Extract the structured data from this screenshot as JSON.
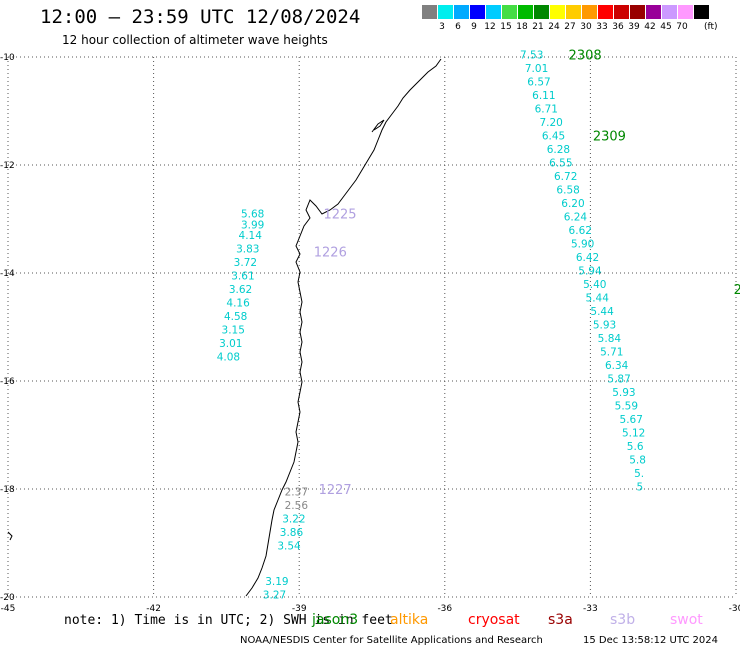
{
  "header": {
    "title": "12:00 – 23:59 UTC 12/08/2024",
    "subtitle": "12 hour collection of altimeter wave heights"
  },
  "scale": {
    "colors": [
      "#808080",
      "#00eeee",
      "#00aaff",
      "#0000ff",
      "#00ccff",
      "#44dd44",
      "#00bb00",
      "#008800",
      "#ffff00",
      "#ffcc00",
      "#ff9900",
      "#ff0000",
      "#cc0000",
      "#990000",
      "#990099",
      "#cc99ff",
      "#ff99ff",
      "#000000"
    ],
    "ticks": [
      "3",
      "6",
      "9",
      "12",
      "15",
      "18",
      "21",
      "24",
      "27",
      "30",
      "33",
      "36",
      "39",
      "42",
      "45",
      "70"
    ],
    "unit": "(ft)"
  },
  "map": {
    "lon_range": [
      -45,
      -30
    ],
    "lat_range": [
      -20,
      -10
    ],
    "lon_ticks": [
      "-45",
      "-42",
      "-39",
      "-36",
      "-33",
      "-30"
    ],
    "lat_ticks": [
      "-10",
      "-12",
      "-14",
      "-16",
      "-18",
      "-20"
    ],
    "grid": "dotted"
  },
  "tracks": [
    {
      "color": "#00cccc",
      "points": [
        {
          "lon": -40.2,
          "lat": -12.9,
          "v": "5.68"
        },
        {
          "lon": -40.2,
          "lat": -13.1,
          "v": "3.99"
        },
        {
          "lon": -40.25,
          "lat": -13.3,
          "v": "4.14"
        },
        {
          "lon": -40.3,
          "lat": -13.55,
          "v": "3.83"
        },
        {
          "lon": -40.35,
          "lat": -13.8,
          "v": "3.72"
        },
        {
          "lon": -40.4,
          "lat": -14.05,
          "v": "3.61"
        },
        {
          "lon": -40.45,
          "lat": -14.3,
          "v": "3.62"
        },
        {
          "lon": -40.5,
          "lat": -14.55,
          "v": "4.16"
        },
        {
          "lon": -40.55,
          "lat": -14.8,
          "v": "4.58"
        },
        {
          "lon": -40.6,
          "lat": -15.05,
          "v": "3.15"
        },
        {
          "lon": -40.65,
          "lat": -15.3,
          "v": "3.01"
        },
        {
          "lon": -40.7,
          "lat": -15.55,
          "v": "4.08"
        }
      ],
      "labels": [
        {
          "lon": -38.5,
          "lat": -12.9,
          "text": "1225",
          "color": "#b0a0e0"
        },
        {
          "lon": -38.7,
          "lat": -13.6,
          "text": "1226",
          "color": "#b0a0e0"
        }
      ]
    },
    {
      "color": "#00cccc",
      "points": [
        {
          "lon": -39.3,
          "lat": -18.05,
          "v": "2.37",
          "color": "#888888"
        },
        {
          "lon": -39.3,
          "lat": -18.3,
          "v": "2.56",
          "color": "#888888"
        },
        {
          "lon": -39.35,
          "lat": -18.55,
          "v": "3.22"
        },
        {
          "lon": -39.4,
          "lat": -18.8,
          "v": "3.86"
        },
        {
          "lon": -39.45,
          "lat": -19.05,
          "v": "3.54"
        },
        {
          "lon": -39.7,
          "lat": -19.7,
          "v": "3.19"
        },
        {
          "lon": -39.75,
          "lat": -19.95,
          "v": "3.27"
        }
      ],
      "labels": [
        {
          "lon": -38.6,
          "lat": -18.0,
          "text": "1227",
          "color": "#b0a0e0"
        }
      ]
    },
    {
      "color": "#00cccc",
      "points": [
        {
          "lon": -34.45,
          "lat": -9.95,
          "v": "7.53"
        },
        {
          "lon": -34.35,
          "lat": -10.2,
          "v": "7.01"
        },
        {
          "lon": -34.3,
          "lat": -10.45,
          "v": "6.57"
        },
        {
          "lon": -34.2,
          "lat": -10.7,
          "v": "6.11"
        },
        {
          "lon": -34.15,
          "lat": -10.95,
          "v": "6.71"
        },
        {
          "lon": -34.05,
          "lat": -11.2,
          "v": "7.20"
        },
        {
          "lon": -34.0,
          "lat": -11.45,
          "v": "6.45"
        },
        {
          "lon": -33.9,
          "lat": -11.7,
          "v": "6.28"
        },
        {
          "lon": -33.85,
          "lat": -11.95,
          "v": "6.55"
        },
        {
          "lon": -33.75,
          "lat": -12.2,
          "v": "6.72"
        },
        {
          "lon": -33.7,
          "lat": -12.45,
          "v": "6.58"
        },
        {
          "lon": -33.6,
          "lat": -12.7,
          "v": "6.20"
        },
        {
          "lon": -33.55,
          "lat": -12.95,
          "v": "6.24"
        },
        {
          "lon": -33.45,
          "lat": -13.2,
          "v": "6.62"
        },
        {
          "lon": -33.4,
          "lat": -13.45,
          "v": "5.90"
        },
        {
          "lon": -33.3,
          "lat": -13.7,
          "v": "6.42"
        },
        {
          "lon": -33.25,
          "lat": -13.95,
          "v": "5.94"
        },
        {
          "lon": -33.15,
          "lat": -14.2,
          "v": "5.40"
        },
        {
          "lon": -33.1,
          "lat": -14.45,
          "v": "5.44"
        },
        {
          "lon": -33.0,
          "lat": -14.7,
          "v": "5.44"
        },
        {
          "lon": -32.95,
          "lat": -14.95,
          "v": "5.93"
        },
        {
          "lon": -32.85,
          "lat": -15.2,
          "v": "5.84"
        },
        {
          "lon": -32.8,
          "lat": -15.45,
          "v": "5.71"
        },
        {
          "lon": -32.7,
          "lat": -15.7,
          "v": "6.34"
        },
        {
          "lon": -32.65,
          "lat": -15.95,
          "v": "5.87"
        },
        {
          "lon": -32.55,
          "lat": -16.2,
          "v": "5.93"
        },
        {
          "lon": -32.5,
          "lat": -16.45,
          "v": "5.59"
        },
        {
          "lon": -32.4,
          "lat": -16.7,
          "v": "5.67"
        },
        {
          "lon": -32.35,
          "lat": -16.95,
          "v": "5.12"
        },
        {
          "lon": -32.25,
          "lat": -17.2,
          "v": "5.6"
        },
        {
          "lon": -32.2,
          "lat": -17.45,
          "v": "5.8"
        },
        {
          "lon": -32.1,
          "lat": -17.7,
          "v": "5."
        },
        {
          "lon": -32.05,
          "lat": -17.95,
          "v": "5"
        }
      ],
      "labels": [
        {
          "lon": -33.45,
          "lat": -9.95,
          "text": "2308",
          "color": "#008800"
        },
        {
          "lon": -32.95,
          "lat": -11.45,
          "text": "2309",
          "color": "#008800"
        },
        {
          "lon": -30.05,
          "lat": -14.3,
          "text": "2",
          "color": "#008800"
        }
      ]
    }
  ],
  "legend": {
    "note": "note: 1) Time is in UTC; 2) SWH is in feet",
    "missions": [
      {
        "name": "jason3",
        "color": "#008800"
      },
      {
        "name": "altika",
        "color": "#ff9900"
      },
      {
        "name": "cryosat",
        "color": "#ff0000"
      },
      {
        "name": "s3a",
        "color": "#990000"
      },
      {
        "name": "s3b",
        "color": "#c0b0e8"
      },
      {
        "name": "swot",
        "color": "#ff99ff"
      }
    ]
  },
  "footer": {
    "credit": "NOAA/NESDIS Center for Satellite Applications and Research",
    "timestamp": "15 Dec 13:58:12 UTC 2024"
  }
}
